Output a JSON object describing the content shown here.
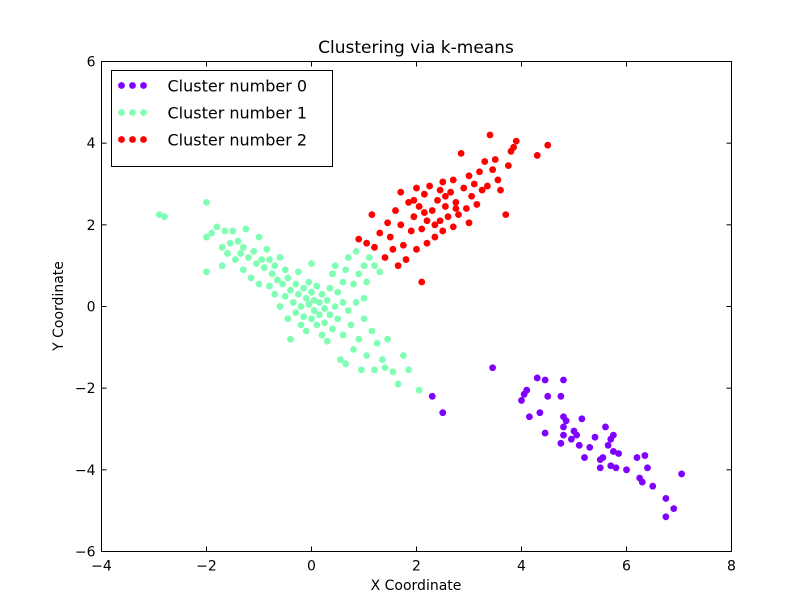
{
  "chart_data": {
    "type": "scatter",
    "title": "Clustering via k-means",
    "xlabel": "X Coordinate",
    "ylabel": "Y Coordinate",
    "xlim": [
      -4,
      8
    ],
    "ylim": [
      -6,
      6
    ],
    "xticks": [
      "−4",
      "−2",
      "0",
      "2",
      "4",
      "6",
      "8"
    ],
    "yticks": [
      "−6",
      "−4",
      "−2",
      "0",
      "2",
      "4",
      "6"
    ],
    "grid": false,
    "legend_position": "top-left",
    "series": [
      {
        "name": "Cluster number 0",
        "color": "#8000ff",
        "points": [
          [
            2.3,
            -2.2
          ],
          [
            2.5,
            -2.6
          ],
          [
            3.45,
            -1.5
          ],
          [
            4.0,
            -2.3
          ],
          [
            4.05,
            -2.15
          ],
          [
            4.1,
            -2.05
          ],
          [
            4.15,
            -2.7
          ],
          [
            4.3,
            -1.75
          ],
          [
            4.35,
            -2.6
          ],
          [
            4.45,
            -1.8
          ],
          [
            4.45,
            -3.1
          ],
          [
            4.5,
            -2.2
          ],
          [
            4.75,
            -2.2
          ],
          [
            4.8,
            -1.8
          ],
          [
            4.8,
            -2.7
          ],
          [
            4.8,
            -2.95
          ],
          [
            4.8,
            -3.15
          ],
          [
            4.85,
            -2.8
          ],
          [
            4.75,
            -3.35
          ],
          [
            4.95,
            -3.25
          ],
          [
            5.0,
            -3.05
          ],
          [
            5.05,
            -3.15
          ],
          [
            5.1,
            -3.4
          ],
          [
            5.15,
            -2.75
          ],
          [
            5.2,
            -3.7
          ],
          [
            5.3,
            -3.45
          ],
          [
            5.4,
            -3.2
          ],
          [
            5.5,
            -3.75
          ],
          [
            5.5,
            -3.95
          ],
          [
            5.55,
            -3.7
          ],
          [
            5.6,
            -2.95
          ],
          [
            5.65,
            -3.4
          ],
          [
            5.7,
            -3.25
          ],
          [
            5.7,
            -3.9
          ],
          [
            5.75,
            -3.55
          ],
          [
            5.75,
            -3.15
          ],
          [
            5.8,
            -3.95
          ],
          [
            5.85,
            -3.6
          ],
          [
            6.0,
            -4.0
          ],
          [
            6.2,
            -3.7
          ],
          [
            6.25,
            -4.2
          ],
          [
            6.3,
            -4.3
          ],
          [
            6.35,
            -3.65
          ],
          [
            6.4,
            -3.95
          ],
          [
            6.5,
            -4.4
          ],
          [
            6.75,
            -4.7
          ],
          [
            6.75,
            -5.15
          ],
          [
            6.9,
            -4.95
          ],
          [
            7.05,
            -4.1
          ]
        ]
      },
      {
        "name": "Cluster number 1",
        "color": "#80ffb4",
        "points": [
          [
            -2.9,
            2.25
          ],
          [
            -2.8,
            2.2
          ],
          [
            -2.0,
            2.55
          ],
          [
            -2.0,
            1.7
          ],
          [
            -2.0,
            0.85
          ],
          [
            -1.9,
            1.8
          ],
          [
            -1.8,
            1.95
          ],
          [
            -1.7,
            1.45
          ],
          [
            -1.7,
            1.0
          ],
          [
            -1.65,
            1.85
          ],
          [
            -1.6,
            1.3
          ],
          [
            -1.55,
            1.55
          ],
          [
            -1.5,
            1.85
          ],
          [
            -1.45,
            1.15
          ],
          [
            -1.4,
            1.6
          ],
          [
            -1.35,
            1.3
          ],
          [
            -1.3,
            0.9
          ],
          [
            -1.3,
            1.45
          ],
          [
            -1.25,
            1.9
          ],
          [
            -1.2,
            1.2
          ],
          [
            -1.15,
            0.7
          ],
          [
            -1.1,
            1.35
          ],
          [
            -1.05,
            1.05
          ],
          [
            -1.0,
            0.55
          ],
          [
            -1.0,
            1.7
          ],
          [
            -0.95,
            1.15
          ],
          [
            -0.9,
            0.95
          ],
          [
            -0.85,
            1.4
          ],
          [
            -0.8,
            0.5
          ],
          [
            -0.8,
            1.15
          ],
          [
            -0.75,
            0.8
          ],
          [
            -0.7,
            1.0
          ],
          [
            -0.7,
            0.3
          ],
          [
            -0.65,
            0.65
          ],
          [
            -0.6,
            1.2
          ],
          [
            -0.6,
            0.0
          ],
          [
            -0.55,
            0.55
          ],
          [
            -0.5,
            0.9
          ],
          [
            -0.5,
            0.25
          ],
          [
            -0.45,
            -0.3
          ],
          [
            -0.45,
            0.7
          ],
          [
            -0.4,
            0.4
          ],
          [
            -0.4,
            -0.8
          ],
          [
            -0.35,
            0.1
          ],
          [
            -0.3,
            0.55
          ],
          [
            -0.3,
            -0.15
          ],
          [
            -0.25,
            0.85
          ],
          [
            -0.25,
            0.3
          ],
          [
            -0.2,
            -0.45
          ],
          [
            -0.2,
            0.0
          ],
          [
            -0.15,
            0.45
          ],
          [
            -0.15,
            -0.25
          ],
          [
            -0.1,
            0.2
          ],
          [
            -0.1,
            -0.6
          ],
          [
            -0.05,
            0.6
          ],
          [
            -0.05,
            0.05
          ],
          [
            0.0,
            -0.3
          ],
          [
            0.0,
            0.35
          ],
          [
            0.0,
            1.05
          ],
          [
            0.05,
            -0.1
          ],
          [
            0.05,
            0.15
          ],
          [
            0.1,
            -0.45
          ],
          [
            0.1,
            0.5
          ],
          [
            0.15,
            -0.2
          ],
          [
            0.15,
            0.1
          ],
          [
            0.2,
            -0.7
          ],
          [
            0.2,
            0.3
          ],
          [
            0.25,
            -0.05
          ],
          [
            0.25,
            -0.4
          ],
          [
            0.3,
            0.15
          ],
          [
            0.3,
            -0.85
          ],
          [
            0.35,
            0.45
          ],
          [
            0.35,
            -0.2
          ],
          [
            0.4,
            0.8
          ],
          [
            0.4,
            -0.55
          ],
          [
            0.45,
            0.0
          ],
          [
            0.45,
            1.0
          ],
          [
            0.5,
            -0.3
          ],
          [
            0.5,
            0.35
          ],
          [
            0.55,
            -1.3
          ],
          [
            0.6,
            -0.7
          ],
          [
            0.6,
            0.6
          ],
          [
            0.65,
            0.9
          ],
          [
            0.65,
            -1.4
          ],
          [
            0.7,
            -0.1
          ],
          [
            0.7,
            1.2
          ],
          [
            0.75,
            -0.45
          ],
          [
            0.8,
            0.55
          ],
          [
            0.8,
            -1.05
          ],
          [
            0.85,
            1.35
          ],
          [
            0.85,
            0.1
          ],
          [
            0.9,
            -0.8
          ],
          [
            0.9,
            0.8
          ],
          [
            0.95,
            -1.55
          ],
          [
            1.0,
            -0.3
          ],
          [
            1.0,
            1.0
          ],
          [
            1.05,
            -1.2
          ],
          [
            1.05,
            0.6
          ],
          [
            1.1,
            1.2
          ],
          [
            1.15,
            -0.6
          ],
          [
            1.2,
            -1.55
          ],
          [
            1.2,
            1.0
          ],
          [
            1.25,
            -0.9
          ],
          [
            1.3,
            0.85
          ],
          [
            1.35,
            -1.3
          ],
          [
            1.4,
            -1.5
          ],
          [
            1.45,
            -0.8
          ],
          [
            1.55,
            -1.6
          ],
          [
            1.65,
            -1.9
          ],
          [
            1.75,
            -1.2
          ],
          [
            1.85,
            -1.55
          ],
          [
            2.05,
            -2.05
          ],
          [
            1.0,
            0.2
          ],
          [
            0.6,
            0.1
          ]
        ]
      },
      {
        "name": "Cluster number 2",
        "color": "#ff0000",
        "points": [
          [
            0.9,
            1.65
          ],
          [
            1.05,
            1.55
          ],
          [
            1.15,
            2.25
          ],
          [
            1.2,
            1.45
          ],
          [
            1.3,
            1.8
          ],
          [
            1.4,
            1.2
          ],
          [
            1.45,
            2.05
          ],
          [
            1.5,
            1.7
          ],
          [
            1.55,
            1.4
          ],
          [
            1.6,
            2.35
          ],
          [
            1.65,
            1.0
          ],
          [
            1.7,
            2.0
          ],
          [
            1.7,
            2.8
          ],
          [
            1.75,
            1.5
          ],
          [
            1.8,
            1.15
          ],
          [
            1.85,
            2.55
          ],
          [
            1.9,
            1.85
          ],
          [
            1.95,
            2.2
          ],
          [
            2.0,
            1.4
          ],
          [
            2.0,
            2.9
          ],
          [
            2.05,
            2.45
          ],
          [
            2.1,
            1.9
          ],
          [
            2.1,
            0.6
          ],
          [
            2.15,
            2.75
          ],
          [
            2.2,
            2.1
          ],
          [
            2.2,
            1.55
          ],
          [
            2.25,
            2.95
          ],
          [
            2.3,
            2.35
          ],
          [
            2.35,
            1.7
          ],
          [
            2.4,
            2.6
          ],
          [
            2.45,
            2.1
          ],
          [
            2.5,
            1.85
          ],
          [
            2.5,
            3.05
          ],
          [
            2.55,
            2.45
          ],
          [
            2.6,
            2.2
          ],
          [
            2.65,
            2.8
          ],
          [
            2.7,
            1.95
          ],
          [
            2.7,
            3.1
          ],
          [
            2.75,
            2.55
          ],
          [
            2.8,
            2.25
          ],
          [
            2.85,
            3.75
          ],
          [
            2.9,
            2.9
          ],
          [
            2.95,
            2.4
          ],
          [
            3.0,
            2.05
          ],
          [
            3.0,
            3.2
          ],
          [
            3.05,
            2.7
          ],
          [
            3.1,
            3.0
          ],
          [
            3.15,
            2.5
          ],
          [
            3.2,
            3.3
          ],
          [
            3.25,
            2.85
          ],
          [
            3.3,
            3.55
          ],
          [
            3.35,
            2.95
          ],
          [
            3.4,
            4.2
          ],
          [
            3.45,
            3.35
          ],
          [
            3.5,
            3.6
          ],
          [
            3.55,
            3.1
          ],
          [
            3.6,
            2.85
          ],
          [
            3.7,
            2.25
          ],
          [
            3.75,
            3.45
          ],
          [
            3.8,
            3.8
          ],
          [
            3.85,
            3.9
          ],
          [
            4.3,
            3.7
          ],
          [
            4.5,
            3.95
          ],
          [
            3.9,
            4.05
          ],
          [
            2.75,
            2.4
          ],
          [
            2.55,
            2.7
          ],
          [
            2.35,
            2.0
          ],
          [
            1.95,
            2.6
          ],
          [
            2.15,
            2.3
          ],
          [
            2.45,
            2.85
          ]
        ]
      }
    ]
  }
}
